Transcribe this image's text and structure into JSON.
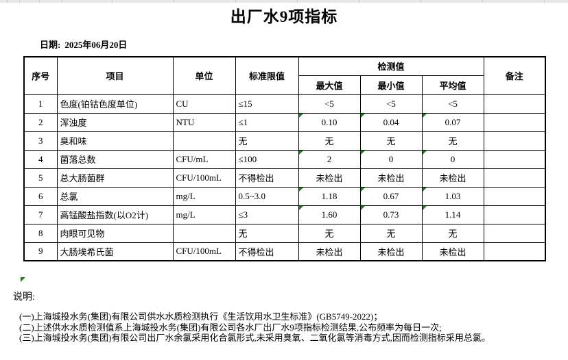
{
  "page": {
    "title": "出厂水9项指标",
    "date_label": "日期:",
    "date_value": "2025年06月20日"
  },
  "table": {
    "headers": {
      "no": "序号",
      "item": "项目",
      "unit": "单位",
      "limit": "标准限值",
      "detection": "检测值",
      "max": "最大值",
      "min": "最小值",
      "avg": "平均值",
      "remark": "备注"
    },
    "rows": [
      {
        "no": "1",
        "item": "色度(铂钴色度单位)",
        "unit": "CU",
        "limit": "≤15",
        "max": "<5",
        "min": "<5",
        "avg": "<5",
        "remark": "",
        "indicator": false
      },
      {
        "no": "2",
        "item": "浑浊度",
        "unit": "NTU",
        "limit": "≤1",
        "max": "0.10",
        "min": "0.04",
        "avg": "0.07",
        "remark": "",
        "indicator": true
      },
      {
        "no": "3",
        "item": "臭和味",
        "unit": "",
        "limit": "无",
        "max": "无",
        "min": "无",
        "avg": "无",
        "remark": "",
        "indicator": false
      },
      {
        "no": "4",
        "item": "菌落总数",
        "unit": "CFU/mL",
        "limit": "≤100",
        "max": "2",
        "min": "0",
        "avg": "0",
        "remark": "",
        "indicator": true
      },
      {
        "no": "5",
        "item": "总大肠菌群",
        "unit": "CFU/100mL",
        "limit": "不得检出",
        "max": "未检出",
        "min": "未检出",
        "avg": "未检出",
        "remark": "",
        "indicator": false
      },
      {
        "no": "6",
        "item": "总氯",
        "unit": "mg/L",
        "limit": "0.5~3.0",
        "max": "1.18",
        "min": "0.67",
        "avg": "1.03",
        "remark": "",
        "indicator": true
      },
      {
        "no": "7",
        "item": "高锰酸盐指数(以O2计)",
        "unit": "mg/L",
        "limit": "≤3",
        "max": "1.60",
        "min": "0.73",
        "avg": "1.14",
        "remark": "",
        "indicator": true
      },
      {
        "no": "8",
        "item": "肉眼可见物",
        "unit": "",
        "limit": "无",
        "max": "无",
        "min": "无",
        "avg": "无",
        "remark": "",
        "indicator": false
      },
      {
        "no": "9",
        "item": "大肠埃希氏菌",
        "unit": "CFU/100mL",
        "limit": "不得检出",
        "max": "未检出",
        "min": "未检出",
        "avg": "未检出",
        "remark": "",
        "indicator": false
      }
    ]
  },
  "notes": {
    "label": "说明:",
    "items": [
      "(一)上海城投水务(集团)有限公司供水水质检测执行《生活饮用水卫生标准》(GB5749-2022)；",
      "(二)上述供水水质检测值系上海城投水务(集团)有限公司各水厂出厂水9项指标检测结果,公布频率为每日一次;",
      "(三)上海城投水务(集团)有限公司出厂水余氯采用化合氯形式,未采用臭氧、二氧化氯等消毒方式,因而检测指标采用总氯。"
    ]
  },
  "colors": {
    "indicator_green": "#1f7d1f",
    "border": "#000000"
  }
}
